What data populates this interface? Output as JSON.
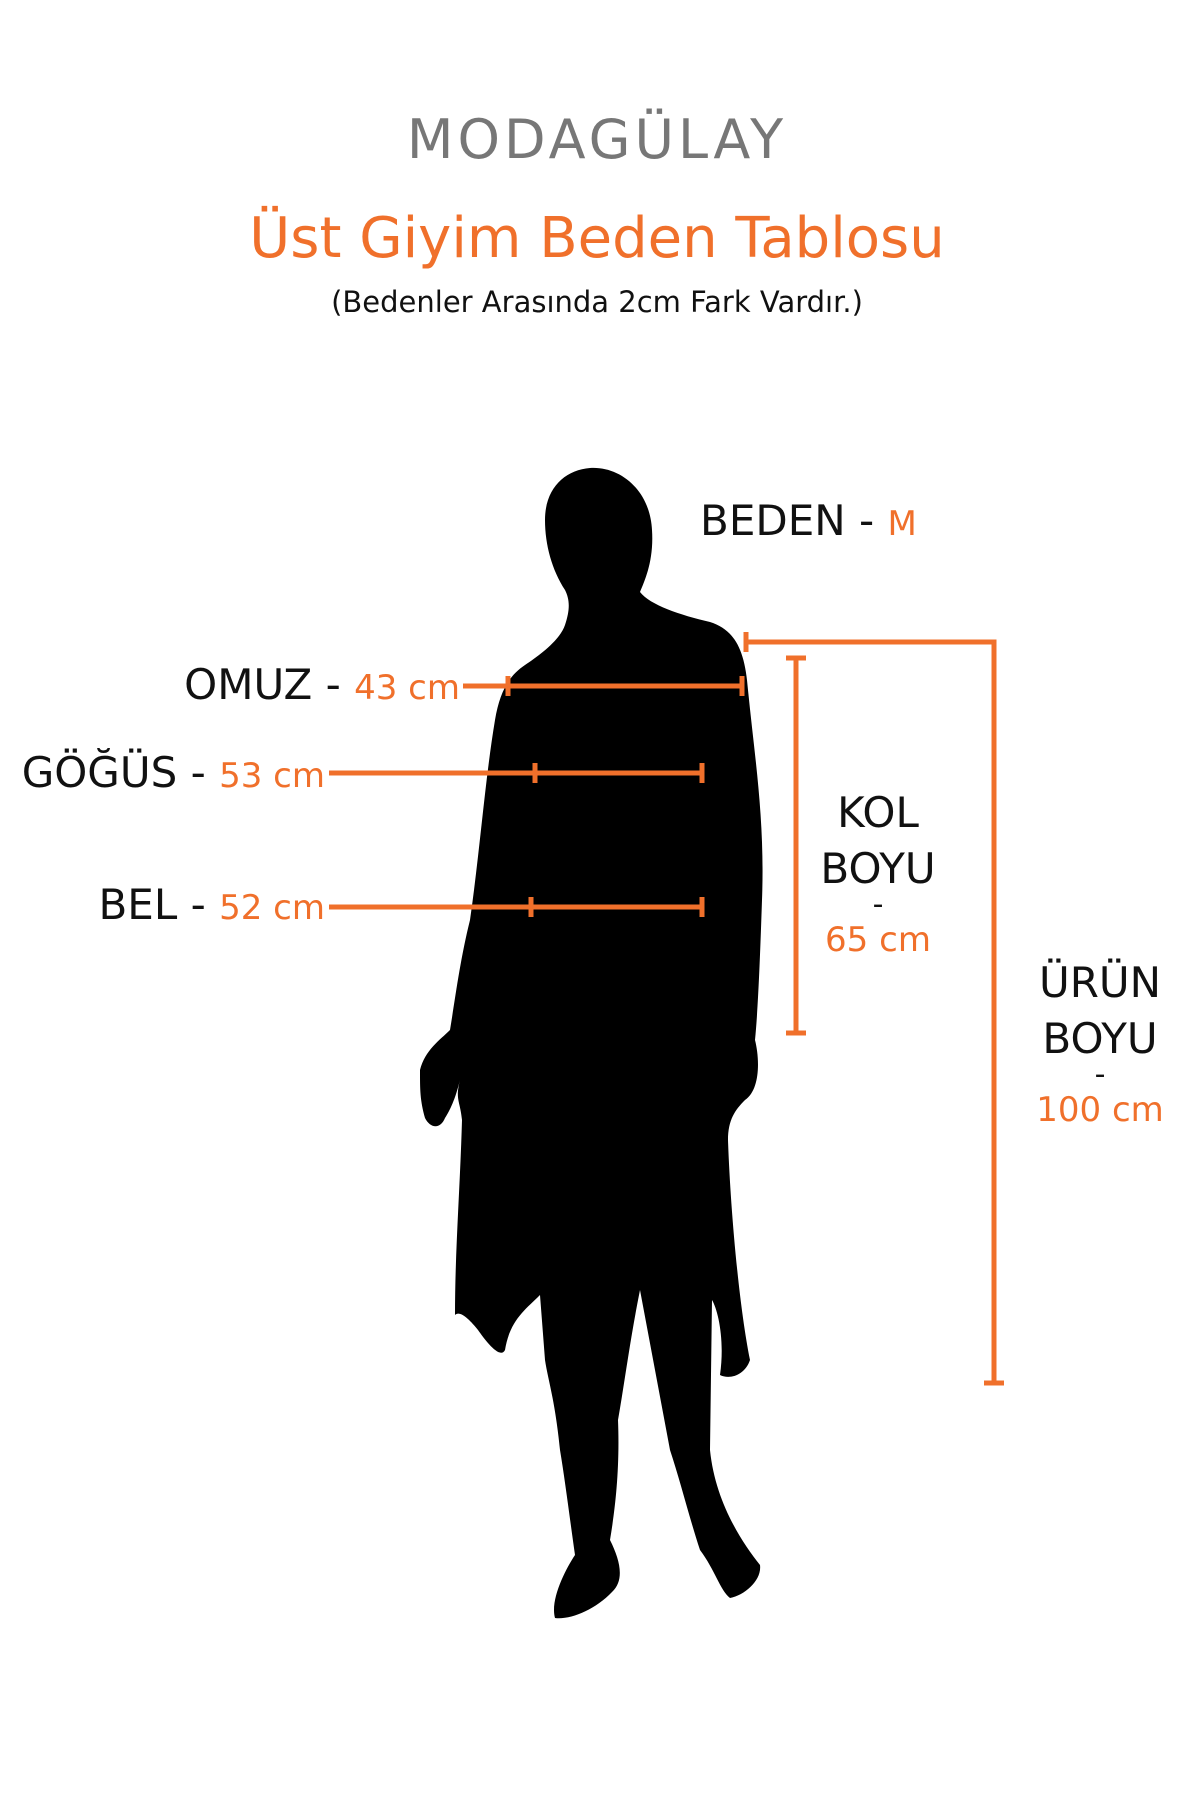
{
  "brand": {
    "logo": "MODAGÜLAY"
  },
  "header": {
    "title": "Üst Giyim Beden Tablosu",
    "subtitle": "(Bedenler Arasında 2cm Fark Vardır.)"
  },
  "size": {
    "label": "BEDEN -",
    "value": "M"
  },
  "measurements": [
    {
      "label": "OMUZ -",
      "value": "43 cm"
    },
    {
      "label": "GÖĞÜS -",
      "value": "53 cm"
    },
    {
      "label": "BEL -",
      "value": "52 cm"
    }
  ],
  "sleeve": {
    "line1": "KOL",
    "line2": "BOYU",
    "separator": "-",
    "value": "65 cm"
  },
  "length": {
    "line1": "ÜRÜN",
    "line2": "BOYU",
    "separator": "-",
    "value": "100 cm"
  },
  "colors": {
    "accent": "#F0702B",
    "text": "#111111",
    "logo": "#777777",
    "silhouette": "#000000"
  }
}
